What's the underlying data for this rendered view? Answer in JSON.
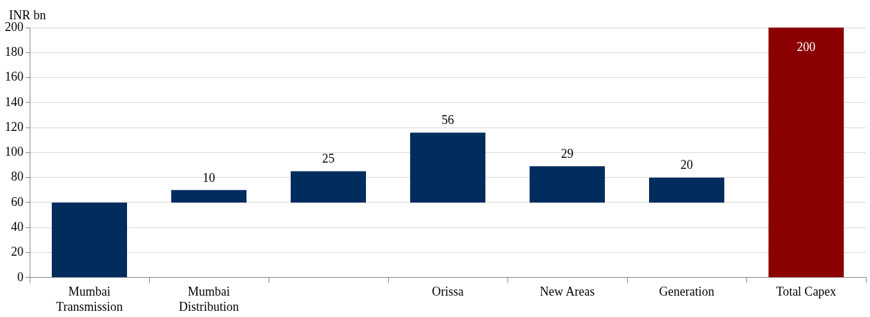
{
  "chart_data": {
    "type": "bar",
    "ylabel": "INR bn",
    "categories": [
      "Mumbai Transmission",
      "Mumbai Distribution",
      null,
      "Orissa",
      "New Areas",
      "Generation",
      "Total Capex"
    ],
    "values": [
      60,
      10,
      25,
      56,
      29,
      20,
      200
    ],
    "base": [
      0,
      60,
      60,
      60,
      60,
      60,
      0
    ],
    "colors": [
      "#002d5e",
      "#002d5e",
      "#002d5e",
      "#002d5e",
      "#002d5e",
      "#002d5e",
      "#8b0000"
    ],
    "value_labels": [
      null,
      "10",
      "25",
      "56",
      "29",
      "20",
      "200"
    ],
    "ylim": [
      0,
      200
    ],
    "yticks": [
      0,
      20,
      40,
      60,
      80,
      100,
      120,
      140,
      160,
      180,
      200
    ],
    "grid": "y",
    "legend": false
  }
}
